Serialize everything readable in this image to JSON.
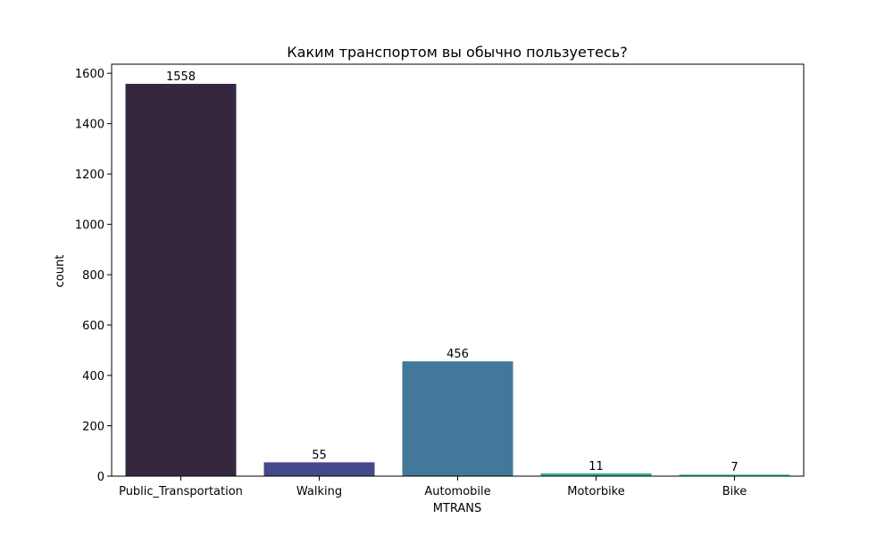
{
  "chart_data": {
    "type": "bar",
    "title": "Каким транспортом вы обычно пользуетесь?",
    "xlabel": "MTRANS",
    "ylabel": "count",
    "categories": [
      "Public_Transportation",
      "Walking",
      "Automobile",
      "Motorbike",
      "Bike"
    ],
    "values": [
      1558,
      55,
      456,
      11,
      7
    ],
    "colors": [
      "#35273f",
      "#44498a",
      "#42799a",
      "#37a996",
      "#5dcf9a"
    ],
    "yticks": [
      0,
      200,
      400,
      600,
      800,
      1000,
      1200,
      1400,
      1600
    ],
    "ylim": [
      0,
      1636
    ],
    "grid": false,
    "legend": false
  }
}
